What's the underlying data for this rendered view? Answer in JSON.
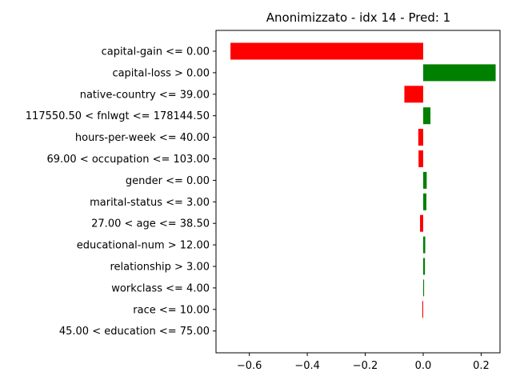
{
  "chart_data": {
    "type": "bar",
    "orientation": "horizontal",
    "title": "Anonimizzato - idx 14 - Pred: 1",
    "xlabel": "",
    "ylabel": "",
    "grid": false,
    "xlim": [
      -0.715,
      0.265
    ],
    "xticks": [
      -0.6,
      -0.4,
      -0.2,
      0.0,
      0.2
    ],
    "xtick_labels": [
      "−0.6",
      "−0.4",
      "−0.2",
      "0.0",
      "0.2"
    ],
    "positive_color": "#008000",
    "negative_color": "#ff0000",
    "categories": [
      "capital-gain <= 0.00",
      "capital-loss > 0.00",
      "native-country <= 39.00",
      "117550.50 < fnlwgt <= 178144.50",
      "hours-per-week <= 40.00",
      "69.00 < occupation <= 103.00",
      "gender <= 0.00",
      "marital-status <= 3.00",
      "27.00 < age <= 38.50",
      "educational-num > 12.00",
      "relationship > 3.00",
      "workclass <= 4.00",
      "race <= 10.00",
      "45.00 < education <= 75.00"
    ],
    "values": [
      -0.665,
      0.25,
      -0.065,
      0.025,
      -0.017,
      -0.016,
      0.012,
      0.011,
      -0.011,
      0.007,
      0.006,
      0.003,
      -0.003,
      0.0
    ]
  }
}
